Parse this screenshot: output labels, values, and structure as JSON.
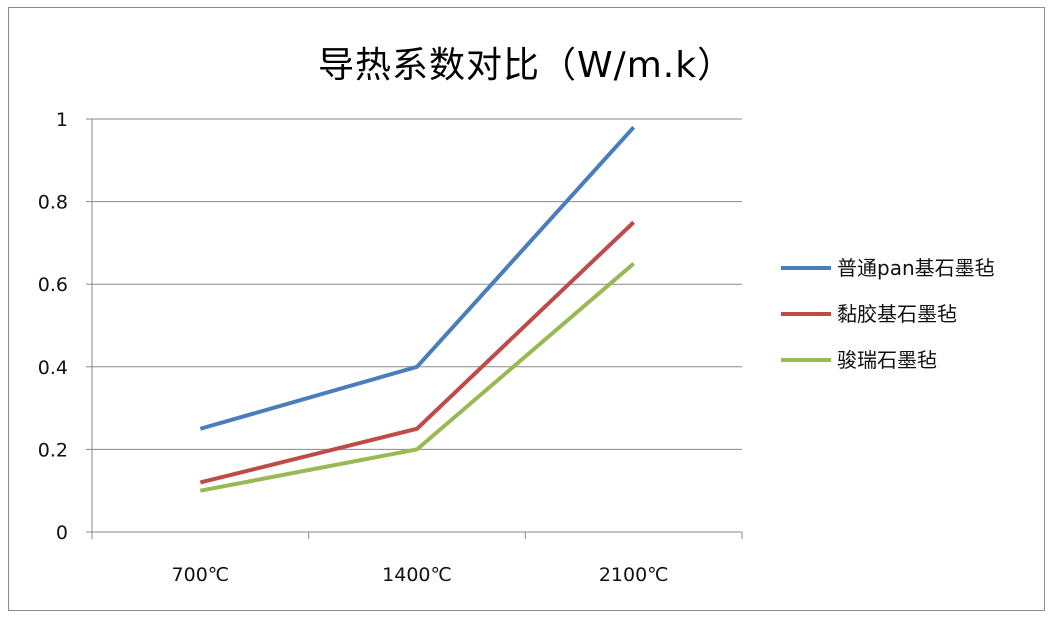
{
  "chart_data": {
    "type": "line",
    "title": "导热系数对比（W/m.k）",
    "categories": [
      "700℃",
      "1400℃",
      "2100℃"
    ],
    "ylim": [
      0,
      1
    ],
    "yticks": [
      "0",
      "0.2",
      "0.4",
      "0.6",
      "0.8",
      "1"
    ],
    "ytick_values": [
      0,
      0.2,
      0.4,
      0.6,
      0.8,
      1
    ],
    "grid": true,
    "legend_position": "right",
    "series": [
      {
        "name": "普通pan基石墨毡",
        "color": "#4a7ebb",
        "values": [
          0.25,
          0.4,
          0.98
        ]
      },
      {
        "name": "黏胶基石墨毡",
        "color": "#be4b48",
        "values": [
          0.12,
          0.25,
          0.75
        ]
      },
      {
        "name": "骏瑞石墨毡",
        "color": "#98b954",
        "values": [
          0.1,
          0.2,
          0.65
        ]
      }
    ]
  }
}
